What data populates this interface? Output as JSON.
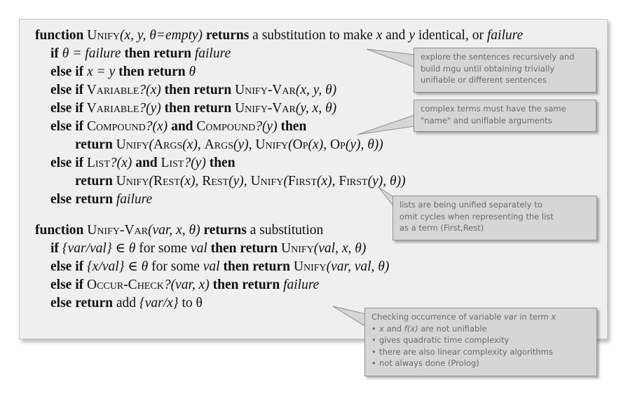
{
  "unify": {
    "header": {
      "kw_function": "function",
      "name": "Unify",
      "args": "(x, y, θ=empty)",
      "kw_returns": "returns",
      "rest1": " a substitution to make ",
      "x": "x",
      "and": " and ",
      "y": "y",
      "rest2": " identical, or ",
      "failure": "failure"
    },
    "l1": {
      "kw": "if",
      "cond": " θ = failure ",
      "kw2": "then return",
      "val": " failure"
    },
    "l2": {
      "kw": "else if",
      "cond": " x = y ",
      "kw2": "then return",
      "val": " θ"
    },
    "l3": {
      "kw": "else if",
      "fn": " Variable",
      "arg": "?(x) ",
      "kw2": "then return",
      "fn2": " Unify-Var",
      "arg2": "(x, y, θ)"
    },
    "l4": {
      "kw": "else if",
      "fn": " Variable",
      "arg": "?(y) ",
      "kw2": "then return",
      "fn2": " Unify-Var",
      "arg2": "(y, x, θ)"
    },
    "l5": {
      "kw": "else if",
      "fn": " Compound",
      "arg": "?(x) ",
      "kw_and": "and",
      "fn2": " Compound",
      "arg2": "?(y) ",
      "kw2": "then"
    },
    "l6": {
      "kw": "return",
      "fn": " Unify",
      "p1": "(",
      "a1": "Args",
      "p2": "(x), ",
      "a2": "Args",
      "p3": "(y), ",
      "a3": "Unify",
      "p4": "(",
      "a4": "Op",
      "p5": "(x), ",
      "a5": "Op",
      "p6": "(y), θ))"
    },
    "l7": {
      "kw": "else if",
      "fn": " List",
      "arg": "?(x) ",
      "kw_and": "and",
      "fn2": " List",
      "arg2": "?(y) ",
      "kw2": "then"
    },
    "l8": {
      "kw": "return",
      "fn": " Unify",
      "p1": "(",
      "a1": "Rest",
      "p2": "(x), ",
      "a2": "Rest",
      "p3": "(y), ",
      "a3": "Unify",
      "p4": "(",
      "a4": "First",
      "p5": "(x), ",
      "a5": "First",
      "p6": "(y), θ))"
    },
    "l9": {
      "kw": "else return",
      "val": " failure"
    }
  },
  "unify_var": {
    "header": {
      "kw_function": "function",
      "name": "Unify-Var",
      "args": "(var, x, θ) ",
      "kw_returns": "returns",
      "rest": " a substitution"
    },
    "l1": {
      "kw": "if",
      "set": " {var/val} ∈ θ ",
      "txt": "for some ",
      "val": "val ",
      "kw2": "then return",
      "fn": " Unify",
      "arg": "(val, x, θ)"
    },
    "l2": {
      "kw": "else if",
      "set": " {x/val} ∈ θ ",
      "txt": "for some ",
      "val": "val ",
      "kw2": "then return",
      "fn": " Unify",
      "arg": "(var, val, θ)"
    },
    "l3": {
      "kw": "else if",
      "fn": " Occur-Check",
      "arg": "?(var, x) ",
      "kw2": "then return",
      "val": " failure"
    },
    "l4": {
      "kw": "else return",
      "txt": " add ",
      "set": "{var/x}",
      "txt2": " to θ"
    }
  },
  "notes": {
    "n1": [
      "explore the sentences recursively and",
      "build mgu until obtaining trivially",
      "unifiable or different sentences"
    ],
    "n2": [
      "complex terms must have the same",
      "\"name\" and unifiable arguments"
    ],
    "n3": [
      "lists are being unified separately to",
      "omit cycles when representing the list",
      "as a term (First,Rest)"
    ],
    "n4": {
      "title_pre": "Checking occurrence of variable ",
      "title_var": "var",
      "title_mid": " in term ",
      "title_x": "x",
      "b1_x": "x",
      "b1_and": " and ",
      "b1_fx": "f(x)",
      "b1_rest": " are not unifiable",
      "b2": "gives quadratic time complexity",
      "b3": "there are also linear complexity algorithms",
      "b4": "not always done (Prolog)"
    }
  },
  "colors": {
    "panel": "#efefef",
    "note_bg": "#d6d6d6",
    "note_text": "#6a6a6a",
    "note_border": "#8f8f8f"
  }
}
